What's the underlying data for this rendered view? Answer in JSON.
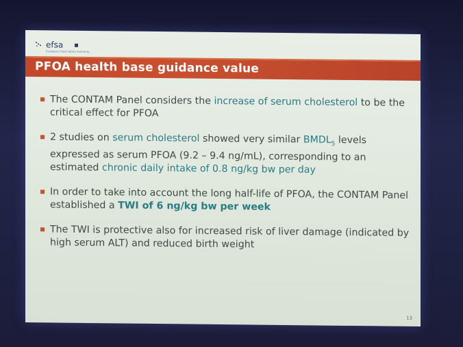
{
  "logo": {
    "text": "efsa",
    "subtext": "European Food Safety Authority"
  },
  "title": "PFOA health base guidance value",
  "bullets": [
    {
      "parts": [
        "The CONTAM Panel considers the ",
        "increase of serum cholesterol",
        " to be the critical effect for PFOA"
      ]
    },
    {
      "parts": [
        "2 studies on ",
        "serum cholesterol",
        " showed very similar ",
        "BMDL",
        "5",
        " levels expressed as serum PFOA (9.2 – 9.4 ng/mL), corresponding to an estimated ",
        "chronic daily intake of 0.8 ng/kg bw per day"
      ]
    },
    {
      "parts": [
        "In order to take into account the long half-life of PFOA, the CONTAM Panel established a ",
        "TWI of 6 ng/kg bw per week"
      ]
    },
    {
      "parts": [
        "The TWI is protective also for increased risk of liver damage (indicated by high serum ALT) and reduced birth weight"
      ]
    }
  ],
  "page_number": "13",
  "colors": {
    "title_bar": "#c2482b",
    "highlight": "#2a7b84",
    "bullet": "#c6542f",
    "body_text": "#3d4a45"
  }
}
